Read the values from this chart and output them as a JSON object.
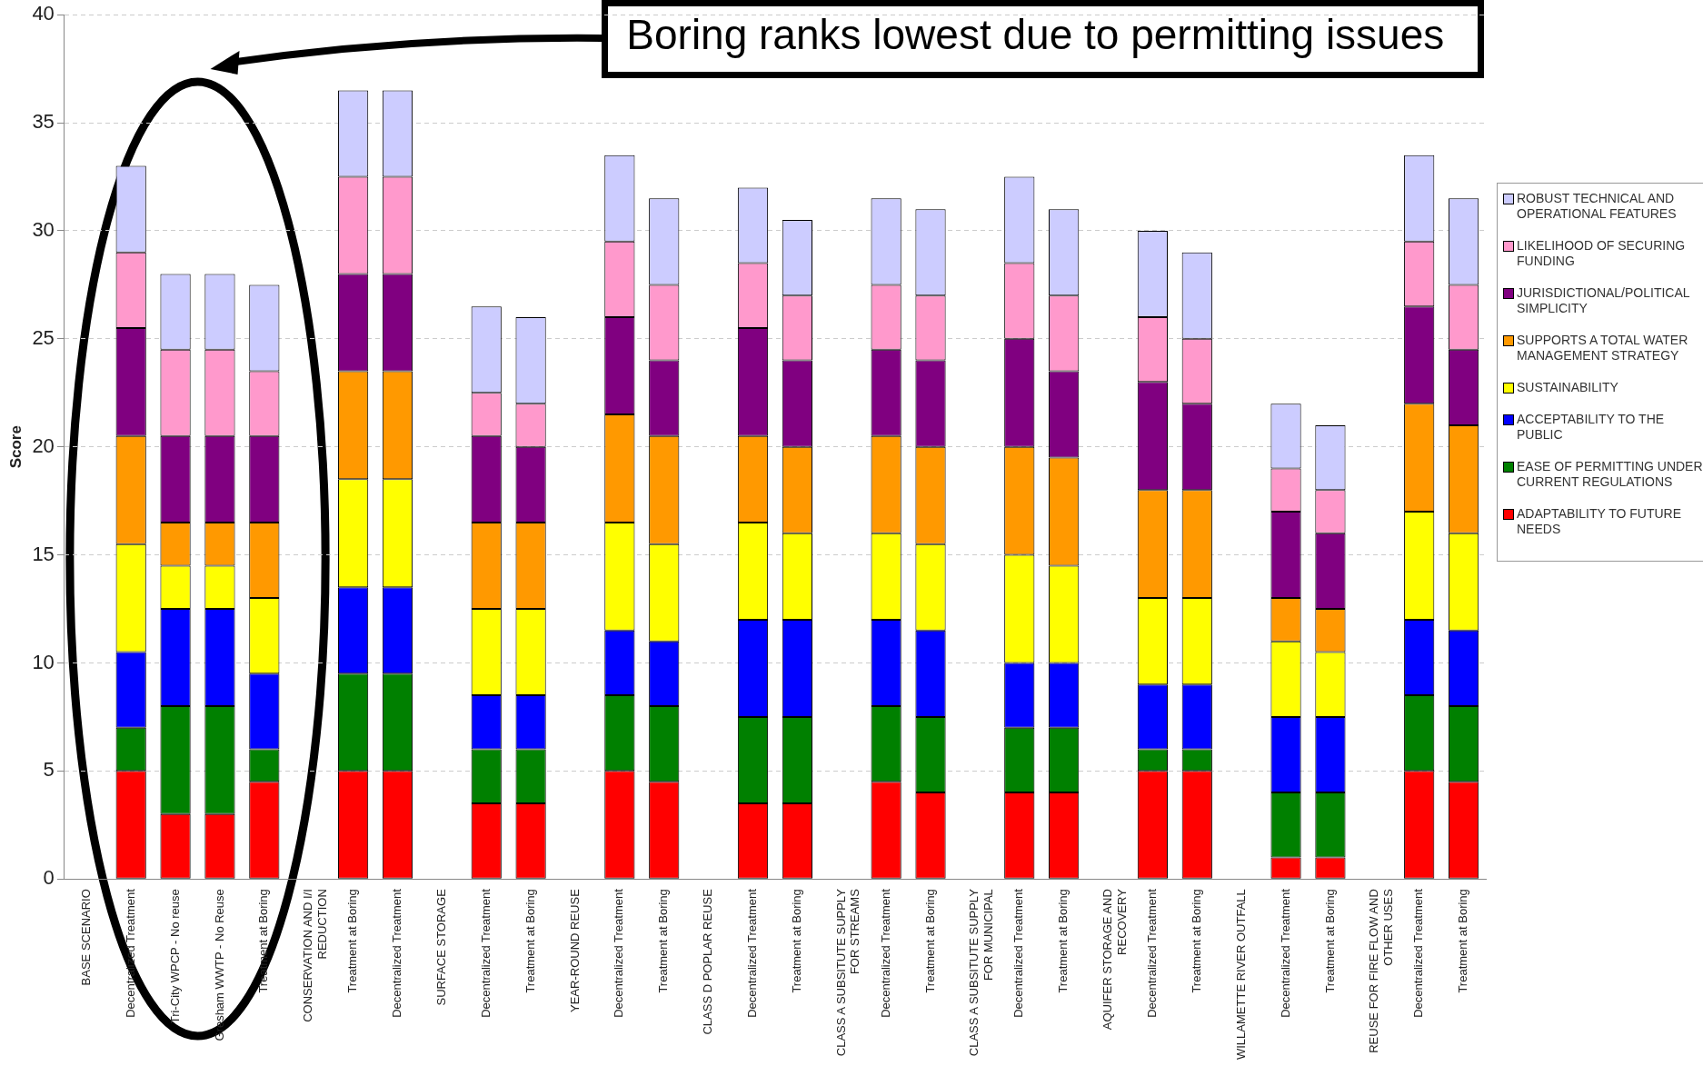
{
  "chart_data": {
    "type": "bar",
    "stacked": true,
    "ylabel": "Score",
    "ylim": [
      0,
      40
    ],
    "yticks": [
      0,
      5,
      10,
      15,
      20,
      25,
      30,
      35,
      40
    ],
    "grid": "y",
    "legend": "right",
    "annotations": [
      "Boring ranks lowest due to permitting issues"
    ],
    "categories": [
      "BASE SCENARIO",
      "Decentralized Treatment",
      "Tri-City WPCP - No reuse",
      "Gresham WWTP - No Reuse",
      "Treatment at Boring",
      "CONSERVATION AND I/I REDUCTION",
      "Treatment at Boring",
      "Decentralized Treatment",
      "SURFACE STORAGE",
      "Decentralized Treatment",
      "Treatment at Boring",
      "YEAR-ROUND REUSE",
      "Decentralized Treatment",
      "Treatment at Boring",
      "CLASS D POPLAR REUSE",
      "Decentralized Treatment",
      "Treatment at Boring",
      "CLASS A SUBSITUTE SUPPLY FOR STREAMS",
      "Decentralized Treatment",
      "Treatment at Boring",
      "CLASS A SUBSITUTE SUPPLY FOR MUNICIPAL",
      "Decentralized Treatment",
      "Treatment at Boring",
      "AQUIFER STORAGE AND RECOVERY",
      "Decentralized Treatment",
      "Treatment at Boring",
      "WILLAMETTE RIVER OUTFALL",
      "Decentralized Treatment",
      "Treatment at Boring",
      "REUSE FOR FIRE FLOW AND OTHER USES",
      "Decentralized Treatment",
      "Treatment at Boring"
    ],
    "series": [
      {
        "name": "ADAPTABILITY TO FUTURE NEEDS",
        "color": "#ff0000",
        "values": [
          null,
          5,
          3,
          3,
          4.5,
          null,
          5,
          5,
          null,
          3.5,
          3.5,
          null,
          5,
          4.5,
          null,
          3.5,
          3.5,
          null,
          4.5,
          4,
          null,
          4,
          4,
          null,
          5,
          5,
          null,
          1,
          1,
          null,
          5,
          4.5
        ]
      },
      {
        "name": "EASE OF PERMITTING UNDER CURRENT REGULATIONS",
        "color": "#008000",
        "values": [
          null,
          2,
          5,
          5,
          1.5,
          null,
          4.5,
          4.5,
          null,
          2.5,
          2.5,
          null,
          3.5,
          3.5,
          null,
          4,
          4,
          null,
          3.5,
          3.5,
          null,
          3,
          3,
          null,
          1,
          1,
          null,
          3,
          3,
          null,
          3.5,
          3.5
        ]
      },
      {
        "name": "ACCEPTABILITY TO THE PUBLIC",
        "color": "#0000ff",
        "values": [
          null,
          3.5,
          4.5,
          4.5,
          3.5,
          null,
          4,
          4,
          null,
          2.5,
          2.5,
          null,
          3,
          3,
          null,
          4.5,
          4.5,
          null,
          4,
          4,
          null,
          3,
          3,
          null,
          3,
          3,
          null,
          3.5,
          3.5,
          null,
          3.5,
          3.5
        ]
      },
      {
        "name": "SUSTAINABILITY",
        "color": "#ffff00",
        "values": [
          null,
          5,
          2,
          2,
          3.5,
          null,
          5,
          5,
          null,
          4,
          4,
          null,
          5,
          4.5,
          null,
          4.5,
          4,
          null,
          4,
          4,
          null,
          5,
          4.5,
          null,
          4,
          4,
          null,
          3.5,
          3,
          null,
          5,
          4.5
        ]
      },
      {
        "name": "SUPPORTS A TOTAL WATER MANAGEMENT STRATEGY",
        "color": "#ff9900",
        "values": [
          null,
          5,
          2,
          2,
          3.5,
          null,
          5,
          5,
          null,
          4,
          4,
          null,
          5,
          5,
          null,
          4,
          4,
          null,
          4.5,
          4.5,
          null,
          5,
          5,
          null,
          5,
          5,
          null,
          2,
          2,
          null,
          5,
          5
        ]
      },
      {
        "name": "JURISDICTIONAL/POLITICAL SIMPLICITY",
        "color": "#800080",
        "values": [
          null,
          5,
          4,
          4,
          4,
          null,
          4.5,
          4.5,
          null,
          4,
          3.5,
          null,
          4.5,
          3.5,
          null,
          5,
          4,
          null,
          4,
          4,
          null,
          5,
          4,
          null,
          5,
          4,
          null,
          4,
          3.5,
          null,
          4.5,
          3.5
        ]
      },
      {
        "name": "LIKELIHOOD OF SECURING FUNDING",
        "color": "#ff99cc",
        "values": [
          null,
          3.5,
          4,
          4,
          3,
          null,
          4.5,
          4.5,
          null,
          2,
          2,
          null,
          3.5,
          3.5,
          null,
          3,
          3,
          null,
          3,
          3,
          null,
          3.5,
          3.5,
          null,
          3,
          3,
          null,
          2,
          2,
          null,
          3,
          3
        ]
      },
      {
        "name": "ROBUST TECHNICAL AND OPERATIONAL FEATURES",
        "color": "#ccccff",
        "values": [
          null,
          4,
          3.5,
          3.5,
          4,
          null,
          4,
          4,
          null,
          4,
          4,
          null,
          4,
          4,
          null,
          3.5,
          3.5,
          null,
          4,
          4,
          null,
          4,
          4,
          null,
          4,
          4,
          null,
          3,
          3,
          null,
          4,
          4
        ]
      }
    ]
  }
}
